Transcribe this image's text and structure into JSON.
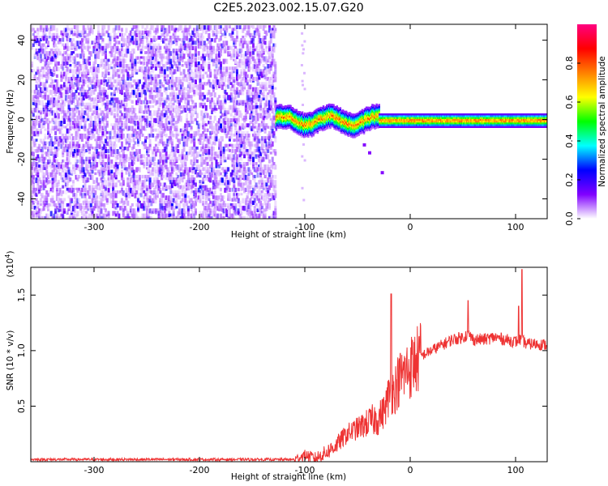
{
  "title": "C2E5.2023.002.15.07.G20",
  "chart_data": [
    {
      "type": "heatmap",
      "xlabel": "Height of straight line (km)",
      "ylabel": "Frequency (Hz)",
      "xlim": [
        -360,
        130
      ],
      "ylim": [
        -50,
        48
      ],
      "xticks": [
        -300,
        -200,
        -100,
        0,
        100
      ],
      "xtick_labels": [
        "-300",
        "-200",
        "-100",
        "0",
        "100"
      ],
      "yticks": [
        -40,
        -20,
        0,
        20,
        40
      ],
      "ytick_labels": [
        "-40",
        "-20",
        "0",
        "20",
        "40"
      ],
      "colorbar": {
        "label": "Normalized spectral amplitude",
        "range": [
          0,
          1
        ],
        "ticks": [
          0,
          0.2,
          0.4,
          0.6,
          0.8
        ],
        "tick_labels": [
          "0.0",
          "0.2",
          "0.4",
          "0.6",
          "0.8"
        ],
        "colormap": [
          "#ffffff",
          "#8000ff",
          "#0000ff",
          "#00ffff",
          "#00ff00",
          "#ffff00",
          "#ff8000",
          "#ff0000",
          "#ff0080"
        ]
      },
      "regions": [
        {
          "x": [
            -360,
            -128
          ],
          "f": [
            -50,
            48
          ],
          "amplitude": [
            0.05,
            0.25
          ],
          "pattern": "noise"
        },
        {
          "x": [
            -128,
            -30
          ],
          "f": [
            -5,
            5
          ],
          "amplitude": [
            0.3,
            0.95
          ],
          "pattern": "signal-wandering"
        },
        {
          "x": [
            -30,
            130
          ],
          "f": [
            -3,
            3
          ],
          "amplitude": [
            0.5,
            1.0
          ],
          "pattern": "signal-narrow"
        }
      ]
    },
    {
      "type": "line",
      "xlabel": "Height of straight line (km)",
      "ylabel": "SNR (10 * v/v)",
      "y_multiplier": "(x10",
      "y_multiplier_exp": "4",
      "y_multiplier_close": ")",
      "xlim": [
        -360,
        130
      ],
      "ylim": [
        0,
        1.75
      ],
      "xticks": [
        -300,
        -200,
        -100,
        0,
        100
      ],
      "xtick_labels": [
        "-300",
        "-200",
        "-100",
        "0",
        "100"
      ],
      "yticks": [
        0.5,
        1.0,
        1.5
      ],
      "ytick_labels": [
        "0.5",
        "1.0",
        "1.5"
      ],
      "series": [
        {
          "color": "#ee3333",
          "x": [
            -360,
            -300,
            -200,
            -110,
            -100,
            -90,
            -80,
            -70,
            -60,
            -50,
            -40,
            -30,
            -25,
            -20,
            -15,
            -10,
            -5,
            0,
            10,
            20,
            30,
            40,
            50,
            55,
            60,
            70,
            80,
            90,
            100,
            105,
            108,
            110,
            120,
            130
          ],
          "y": [
            0.02,
            0.02,
            0.02,
            0.02,
            0.06,
            0.03,
            0.08,
            0.15,
            0.25,
            0.3,
            0.35,
            0.4,
            0.45,
            0.6,
            0.65,
            0.75,
            0.8,
            0.85,
            0.95,
            1.0,
            1.05,
            1.1,
            1.12,
            1.15,
            1.1,
            1.1,
            1.12,
            1.1,
            1.08,
            1.1,
            1.08,
            1.06,
            1.06,
            1.05
          ]
        }
      ],
      "spikes": [
        {
          "x": -18,
          "y": 1.51
        },
        {
          "x": 55,
          "y": 1.45
        },
        {
          "x": 106,
          "y": 1.73
        },
        {
          "x": 103,
          "y": 1.4
        }
      ]
    }
  ]
}
